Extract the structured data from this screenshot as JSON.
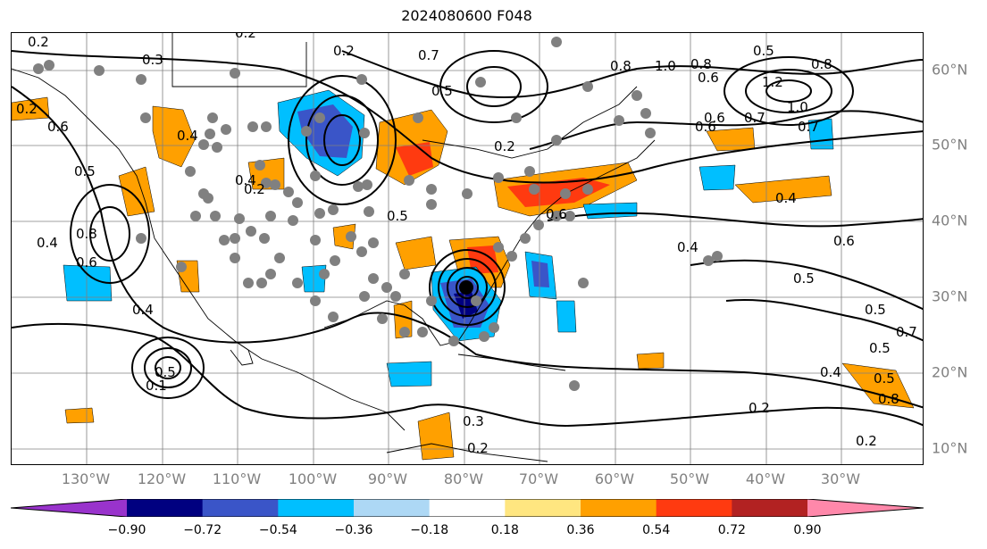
{
  "title": "2024080600 F048",
  "lon_labels": [
    "130°W",
    "120°W",
    "110°W",
    "100°W",
    "90°W",
    "80°W",
    "70°W",
    "60°W",
    "50°W",
    "40°W",
    "30°W"
  ],
  "lat_labels": [
    "60°N",
    "50°N",
    "40°N",
    "30°N",
    "20°N",
    "10°N"
  ],
  "colorbar": {
    "ticks": [
      "−0.90",
      "−0.72",
      "−0.54",
      "−0.36",
      "−0.18",
      "0.18",
      "0.36",
      "0.54",
      "0.72",
      "0.90"
    ],
    "colors": [
      "#9933cc",
      "#000080",
      "#3a55c8",
      "#00bfff",
      "#add8f5",
      "#ffffff",
      "#ffe680",
      "#ffa000",
      "#ff3a10",
      "#b22222",
      "#ff88aa"
    ]
  },
  "contour_labels": [
    "0.2",
    "0.3",
    "0.2",
    "0.2",
    "0.7",
    "0.8",
    "1.0",
    "0.5",
    "0.8",
    "0.6",
    "0.8",
    "1.2",
    "0.5",
    "0.2",
    "1.0",
    "0.6",
    "0.7",
    "0.6",
    "0.7",
    "0.2",
    "0.5",
    "0.8",
    "0.4",
    "0.4",
    "0.6",
    "0.6",
    "0.4",
    "0.5",
    "0.6",
    "0.4",
    "0.5",
    "0.3",
    "0.2",
    "0.2",
    "0.2",
    "0.4",
    "0.5",
    "0.7",
    "0.5",
    "0.8",
    "0.4",
    "0.2",
    "0.4",
    "0.5",
    "0.6",
    "0.5",
    "0.1"
  ],
  "colors": {
    "gray_text": "#808080",
    "station_dot": "#808080",
    "grid": "#808080"
  }
}
